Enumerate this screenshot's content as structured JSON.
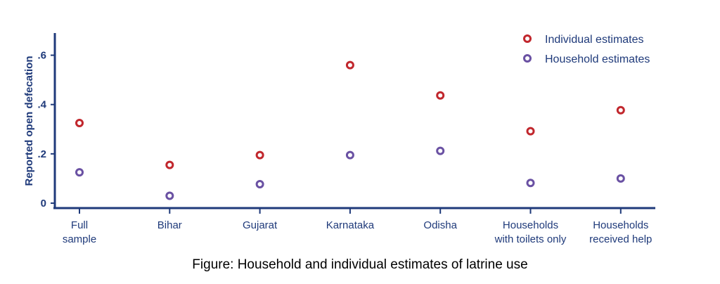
{
  "caption": "Figure: Household and individual estimates of latrine use",
  "chart_data": {
    "type": "scatter",
    "title": "",
    "ylabel": "Reported open defecation",
    "xlabel": "",
    "categories": [
      [
        "Full",
        "sample"
      ],
      [
        "Bihar"
      ],
      [
        "Gujarat"
      ],
      [
        "Karnataka"
      ],
      [
        "Odisha"
      ],
      [
        "Households",
        "with toilets only"
      ],
      [
        "Households",
        "received help"
      ]
    ],
    "yticks": [
      0,
      0.2,
      0.4,
      0.6
    ],
    "ytick_labels": [
      "0",
      ".2",
      ".4",
      ".6"
    ],
    "ylim": [
      -0.02,
      0.69
    ],
    "grid": false,
    "legend_position": "top-right",
    "series": [
      {
        "name": "Individual estimates",
        "color": "#c1272d",
        "values": [
          0.325,
          0.155,
          0.195,
          0.56,
          0.437,
          0.292,
          0.377
        ]
      },
      {
        "name": "Household estimates",
        "color": "#6a51a3",
        "values": [
          0.125,
          0.03,
          0.077,
          0.195,
          0.212,
          0.082,
          0.1
        ]
      }
    ]
  }
}
